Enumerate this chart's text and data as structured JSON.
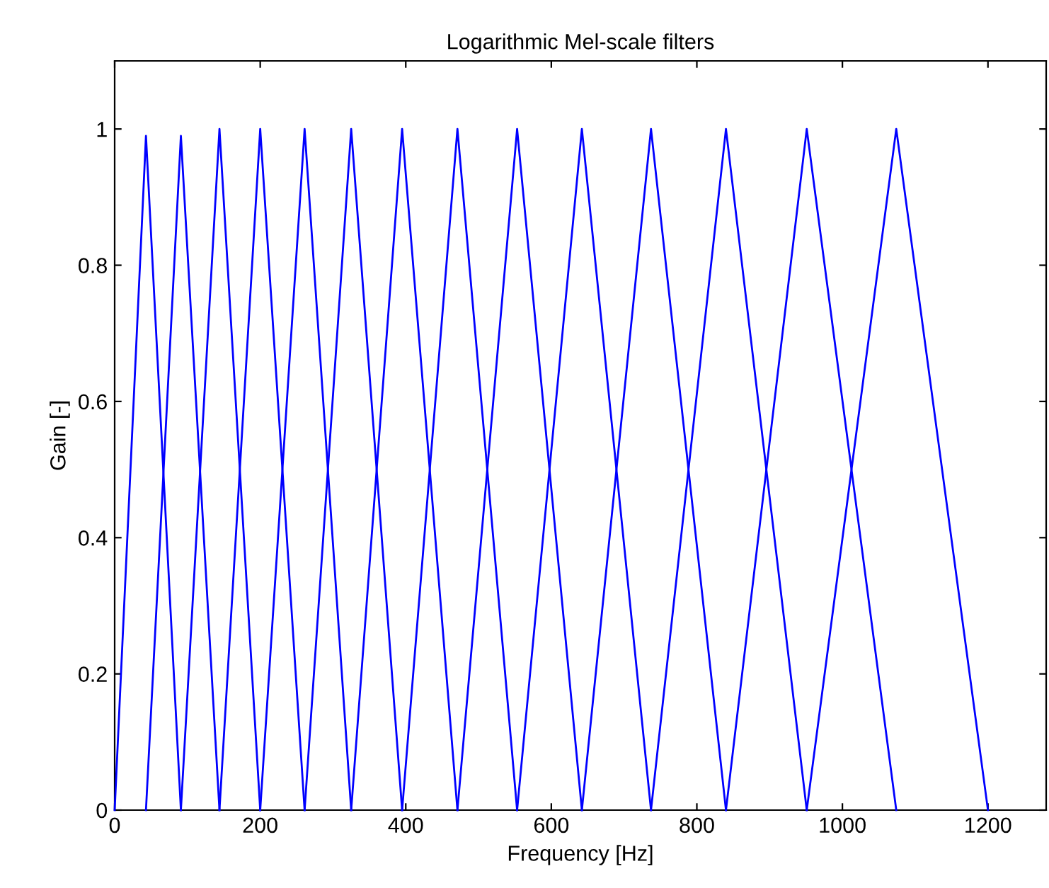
{
  "chart_data": {
    "type": "line",
    "title": "Logarithmic Mel-scale filters",
    "xlabel": "Frequency [Hz]",
    "ylabel": "Gain [-]",
    "xlim": [
      0,
      1280
    ],
    "xticks": [
      0,
      200,
      400,
      600,
      800,
      1000,
      1200
    ],
    "ylim": [
      0,
      1.1
    ],
    "yticks": [
      0,
      0.2,
      0.4,
      0.6,
      0.8,
      1
    ],
    "grid": false,
    "legend": false,
    "marker": "none",
    "line_style": "solid",
    "series": [
      {
        "color": "#0000ff",
        "x": [
          0,
          43,
          91
        ],
        "values": [
          0,
          0.99,
          0
        ]
      },
      {
        "color": "#0000ff",
        "x": [
          43,
          91,
          144
        ],
        "values": [
          0,
          0.99,
          0
        ]
      },
      {
        "color": "#0000ff",
        "x": [
          91,
          144,
          200
        ],
        "values": [
          0,
          1,
          0
        ]
      },
      {
        "color": "#0000ff",
        "x": [
          144,
          200,
          261
        ],
        "values": [
          0,
          1,
          0
        ]
      },
      {
        "color": "#0000ff",
        "x": [
          200,
          261,
          325
        ],
        "values": [
          0,
          1,
          0
        ]
      },
      {
        "color": "#0000ff",
        "x": [
          261,
          325,
          395
        ],
        "values": [
          0,
          1,
          0
        ]
      },
      {
        "color": "#0000ff",
        "x": [
          325,
          395,
          471
        ],
        "values": [
          0,
          1,
          0
        ]
      },
      {
        "color": "#0000ff",
        "x": [
          395,
          471,
          553
        ],
        "values": [
          0,
          1,
          0
        ]
      },
      {
        "color": "#0000ff",
        "x": [
          471,
          553,
          642
        ],
        "values": [
          0,
          1,
          0
        ]
      },
      {
        "color": "#0000ff",
        "x": [
          553,
          642,
          737
        ],
        "values": [
          0,
          1,
          0
        ]
      },
      {
        "color": "#0000ff",
        "x": [
          642,
          737,
          840
        ],
        "values": [
          0,
          1,
          0
        ]
      },
      {
        "color": "#0000ff",
        "x": [
          737,
          840,
          951
        ],
        "values": [
          0,
          1,
          0
        ]
      },
      {
        "color": "#0000ff",
        "x": [
          840,
          951,
          1074
        ],
        "values": [
          0,
          1,
          0
        ]
      },
      {
        "color": "#0000ff",
        "x": [
          951,
          1074,
          1200
        ],
        "values": [
          0,
          1,
          0
        ]
      }
    ]
  }
}
